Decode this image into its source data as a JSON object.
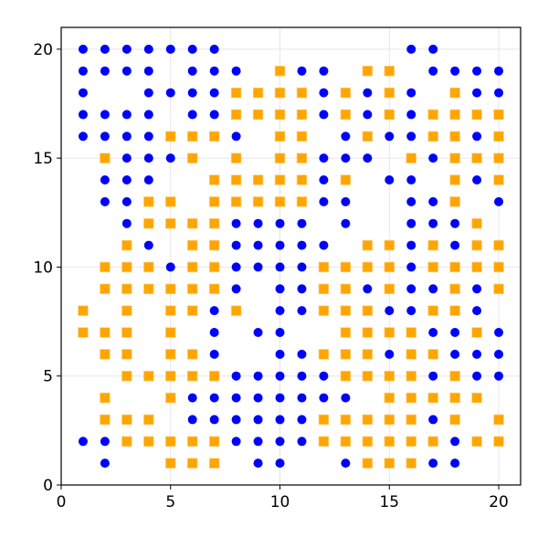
{
  "chart_data": {
    "type": "scatter",
    "xlim": [
      0,
      21
    ],
    "ylim": [
      0,
      21
    ],
    "xticks": [
      0,
      5,
      10,
      15,
      20
    ],
    "yticks": [
      0,
      5,
      10,
      15,
      20
    ],
    "grid": true,
    "series": [
      {
        "color": "#0000ff",
        "marker": "circle",
        "x": [
          1,
          2,
          3,
          4,
          5,
          6,
          7,
          16,
          17,
          1,
          2,
          3,
          4,
          6,
          7,
          8,
          11,
          12,
          17,
          18,
          19,
          20,
          1,
          4,
          5,
          6,
          7,
          12,
          14,
          16,
          19,
          20,
          1,
          2,
          3,
          4,
          6,
          7,
          12,
          14,
          16,
          1,
          2,
          3,
          4,
          8,
          13,
          15,
          16,
          19,
          3,
          4,
          5,
          12,
          13,
          14,
          17,
          2,
          3,
          4,
          12,
          15,
          16,
          19,
          2,
          3,
          12,
          13,
          16,
          17,
          20,
          3,
          8,
          9,
          10,
          11,
          13,
          16,
          17,
          18,
          4,
          8,
          9,
          10,
          11,
          12,
          16,
          18,
          5,
          8,
          9,
          10,
          11,
          16,
          8,
          10,
          11,
          14,
          16,
          17,
          19,
          7,
          10,
          11,
          15,
          16,
          19,
          7,
          9,
          10,
          17,
          18,
          20,
          7,
          10,
          11,
          15,
          18,
          19,
          20,
          8,
          9,
          10,
          11,
          12,
          17,
          19,
          20,
          6,
          7,
          8,
          9,
          10,
          11,
          12,
          13,
          6,
          7,
          8,
          9,
          10,
          11,
          17,
          1,
          2,
          8,
          9,
          10,
          11,
          18,
          2,
          9,
          10,
          13,
          17,
          18
        ],
        "y": [
          20,
          20,
          20,
          20,
          20,
          20,
          20,
          20,
          20,
          19,
          19,
          19,
          19,
          19,
          19,
          19,
          19,
          19,
          19,
          19,
          19,
          19,
          18,
          18,
          18,
          18,
          18,
          18,
          18,
          18,
          18,
          18,
          17,
          17,
          17,
          17,
          17,
          17,
          17,
          17,
          17,
          16,
          16,
          16,
          16,
          16,
          16,
          16,
          16,
          16,
          15,
          15,
          15,
          15,
          15,
          15,
          15,
          14,
          14,
          14,
          14,
          14,
          14,
          14,
          13,
          13,
          13,
          13,
          13,
          13,
          13,
          12,
          12,
          12,
          12,
          12,
          12,
          12,
          12,
          12,
          11,
          11,
          11,
          11,
          11,
          11,
          11,
          11,
          10,
          10,
          10,
          10,
          10,
          10,
          9,
          9,
          9,
          9,
          9,
          9,
          9,
          8,
          8,
          8,
          8,
          8,
          8,
          7,
          7,
          7,
          7,
          7,
          7,
          6,
          6,
          6,
          6,
          6,
          6,
          6,
          5,
          5,
          5,
          5,
          5,
          5,
          5,
          5,
          4,
          4,
          4,
          4,
          4,
          4,
          4,
          4,
          3,
          3,
          3,
          3,
          3,
          3,
          3,
          2,
          2,
          2,
          2,
          2,
          2,
          2,
          1,
          1,
          1,
          1,
          1,
          1
        ]
      },
      {
        "color": "#ffa500",
        "marker": "square",
        "x": [
          10,
          14,
          15,
          8,
          9,
          10,
          11,
          13,
          15,
          18,
          8,
          9,
          10,
          11,
          13,
          15,
          17,
          18,
          19,
          20,
          5,
          6,
          7,
          10,
          11,
          14,
          17,
          18,
          20,
          2,
          6,
          8,
          10,
          11,
          16,
          18,
          19,
          20,
          7,
          8,
          9,
          10,
          11,
          13,
          18,
          20,
          4,
          5,
          7,
          8,
          9,
          10,
          11,
          18,
          4,
          5,
          6,
          7,
          19,
          3,
          6,
          7,
          14,
          15,
          17,
          19,
          20,
          2,
          3,
          4,
          6,
          7,
          12,
          13,
          14,
          15,
          17,
          18,
          19,
          20,
          2,
          3,
          4,
          5,
          6,
          7,
          12,
          13,
          15,
          18,
          20,
          1,
          3,
          5,
          6,
          8,
          12,
          13,
          14,
          17,
          18,
          1,
          2,
          3,
          5,
          13,
          14,
          15,
          16,
          19,
          2,
          3,
          5,
          6,
          12,
          13,
          14,
          16,
          17,
          3,
          4,
          5,
          6,
          7,
          13,
          14,
          15,
          16,
          18,
          2,
          5,
          15,
          16,
          17,
          18,
          19,
          2,
          3,
          4,
          12,
          13,
          14,
          15,
          16,
          18,
          20,
          3,
          4,
          5,
          6,
          7,
          12,
          13,
          14,
          15,
          16,
          17,
          19,
          20,
          5,
          6,
          7,
          14,
          15,
          16
        ],
        "y": [
          19,
          19,
          19,
          18,
          18,
          18,
          18,
          18,
          18,
          18,
          17,
          17,
          17,
          17,
          17,
          17,
          17,
          17,
          17,
          17,
          16,
          16,
          16,
          16,
          16,
          16,
          16,
          16,
          16,
          15,
          15,
          15,
          15,
          15,
          15,
          15,
          15,
          15,
          14,
          14,
          14,
          14,
          14,
          14,
          14,
          14,
          13,
          13,
          13,
          13,
          13,
          13,
          13,
          13,
          12,
          12,
          12,
          12,
          12,
          11,
          11,
          11,
          11,
          11,
          11,
          11,
          11,
          10,
          10,
          10,
          10,
          10,
          10,
          10,
          10,
          10,
          10,
          10,
          10,
          10,
          9,
          9,
          9,
          9,
          9,
          9,
          9,
          9,
          9,
          9,
          9,
          8,
          8,
          8,
          8,
          8,
          8,
          8,
          8,
          8,
          8,
          7,
          7,
          7,
          7,
          7,
          7,
          7,
          7,
          7,
          6,
          6,
          6,
          6,
          6,
          6,
          6,
          6,
          6,
          5,
          5,
          5,
          5,
          5,
          5,
          5,
          5,
          5,
          5,
          4,
          4,
          4,
          4,
          4,
          4,
          4,
          3,
          3,
          3,
          3,
          3,
          3,
          3,
          3,
          3,
          3,
          2,
          2,
          2,
          2,
          2,
          2,
          2,
          2,
          2,
          2,
          2,
          2,
          2,
          1,
          1,
          1,
          1,
          1,
          1
        ]
      }
    ]
  }
}
